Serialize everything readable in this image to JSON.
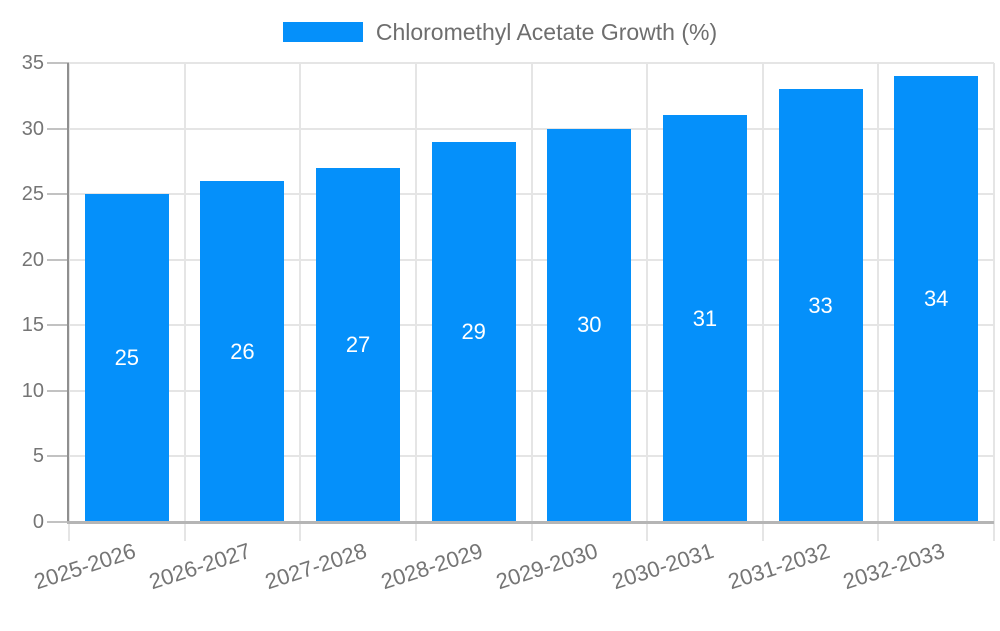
{
  "legend": {
    "label": "Chloromethyl Acetate Growth (%)"
  },
  "chart_data": {
    "type": "bar",
    "title": "Chloromethyl Acetate Growth (%)",
    "series_name": "Chloromethyl Acetate Growth (%)",
    "categories": [
      "2025-2026",
      "2026-2027",
      "2027-2028",
      "2028-2029",
      "2029-2030",
      "2030-2031",
      "2031-2032",
      "2032-2033"
    ],
    "values": [
      25,
      26,
      27,
      29,
      30,
      31,
      33,
      34
    ],
    "value_labels_shown": true,
    "xlabel": "",
    "ylabel": "",
    "ylim": [
      0,
      35
    ],
    "yticks": [
      0,
      5,
      10,
      15,
      20,
      25,
      30,
      35
    ],
    "grid": true,
    "legend_position": "top-center",
    "x_tick_rotation_deg": -18,
    "colors": {
      "bar": "#0590fa",
      "bar_value_label": "#ffffff",
      "axis_label_text": "#757575",
      "legend_text": "#6e6e6e",
      "gridline": "#e5e5e5",
      "tick_mark": "#c2c2c2",
      "y_axis_line": "#8f8f8f",
      "x_axis_line": "#b5b5b5"
    }
  }
}
